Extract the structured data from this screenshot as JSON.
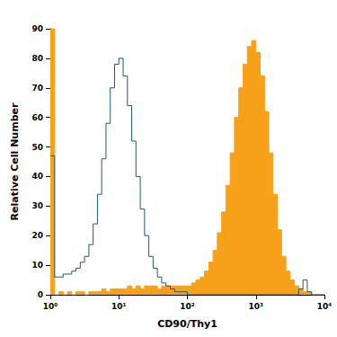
{
  "chart_data": {
    "type": "histogram",
    "x_label": "CD90/Thy1",
    "y_label": "Relative Cell Number",
    "log": "x",
    "grid": false,
    "xlim": [
      1,
      10000
    ],
    "xticks": [
      {
        "value": 1,
        "label": "10⁰"
      },
      {
        "value": 10,
        "label": "10¹"
      },
      {
        "value": 100,
        "label": "10²"
      },
      {
        "value": 1000,
        "label": "10³"
      },
      {
        "value": 10000,
        "label": "10⁴"
      }
    ],
    "ylim": [
      0,
      90
    ],
    "yticks": [
      0,
      10,
      20,
      30,
      40,
      50,
      60,
      70,
      80,
      90
    ],
    "bins": [
      1,
      1.155,
      1.334,
      1.54,
      1.778,
      2.054,
      2.371,
      2.738,
      3.162,
      3.652,
      4.217,
      4.87,
      5.623,
      6.494,
      7.499,
      8.66,
      10,
      11.55,
      13.34,
      15.4,
      17.78,
      20.54,
      23.71,
      27.38,
      31.62,
      36.52,
      42.17,
      48.7,
      56.23,
      64.94,
      74.99,
      86.6,
      100,
      115.5,
      133.4,
      154,
      177.8,
      205.4,
      237.1,
      273.8,
      316.2,
      365.2,
      421.7,
      487,
      562.3,
      649.4,
      749.9,
      866,
      1000,
      1155,
      1334,
      1540,
      1778,
      2054,
      2371,
      2738,
      3162,
      3652,
      4217,
      4870,
      5623,
      6494,
      7499,
      8660,
      10000
    ],
    "series": [
      {
        "type": "area",
        "color": "#f7a11a",
        "values": [
          90,
          0,
          1,
          0,
          1,
          0,
          1,
          1,
          0,
          1,
          1,
          1,
          2,
          1,
          2,
          2,
          2,
          2,
          3,
          2,
          3,
          2,
          3,
          3,
          3,
          2,
          3,
          3,
          3,
          3,
          3,
          3,
          3,
          4,
          5,
          6,
          8,
          11,
          15,
          21,
          28,
          37,
          48,
          60,
          70,
          78,
          84,
          86,
          82,
          74,
          62,
          48,
          34,
          22,
          13,
          8,
          5,
          3,
          2,
          1,
          1,
          0,
          0,
          0
        ]
      },
      {
        "type": "line",
        "color": "#1d5a7a",
        "values": [
          47,
          6,
          6,
          7,
          7,
          8,
          9,
          11,
          13,
          17,
          24,
          34,
          46,
          58,
          70,
          78,
          80,
          74,
          64,
          52,
          40,
          29,
          20,
          13,
          9,
          6,
          4,
          3,
          2,
          1,
          1,
          1,
          0,
          0,
          0,
          0,
          0,
          0,
          0,
          0,
          0,
          0,
          0,
          0,
          0,
          0,
          0,
          0,
          0,
          0,
          0,
          0,
          0,
          0,
          0,
          0,
          0,
          0,
          2,
          5,
          1,
          0,
          0,
          0
        ]
      }
    ]
  }
}
